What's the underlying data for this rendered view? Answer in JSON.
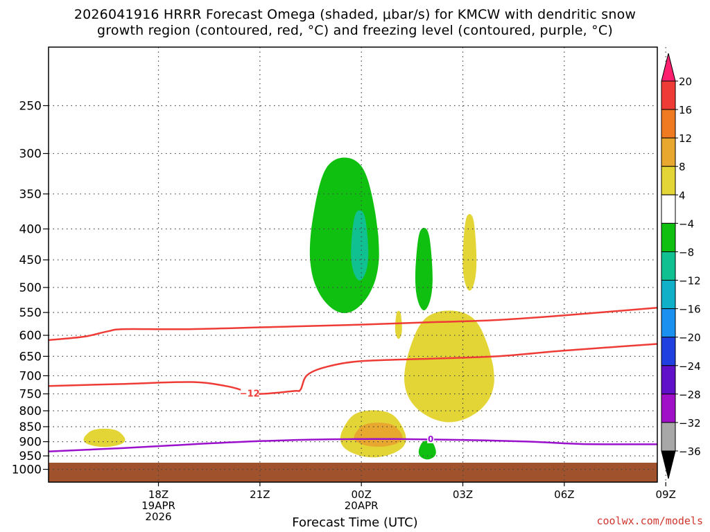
{
  "header": {
    "title_line1": "2026041916 HRRR Forecast Omega (shaded, μbar/s) for KMCW with dendritic snow",
    "title_line2": "growth region (contoured, red, °C) and freezing level (contoured, purple, °C)"
  },
  "footer": {
    "credit": "coolwx.com/models",
    "xlabel": "Forecast Time (UTC)"
  },
  "chart_data": {
    "type": "contour",
    "title": "2026041916 HRRR Forecast Omega (shaded, μbar/s) for KMCW with dendritic snow growth region (contoured, red, °C) and freezing level (contoured, purple, °C)",
    "xlabel": "Forecast Time (UTC)",
    "ylabel": "",
    "y_scale": "log pressure (hPa), inverted",
    "xlim_hours_from_18Z": [
      -3.25,
      14.75
    ],
    "ylim_hPa": [
      1050,
      200
    ],
    "x_ticks": [
      {
        "hour": 0,
        "label": "18Z",
        "sub1": "19APR",
        "sub2": "2026"
      },
      {
        "hour": 3,
        "label": "21Z",
        "sub1": "",
        "sub2": ""
      },
      {
        "hour": 6,
        "label": "00Z",
        "sub1": "20APR",
        "sub2": ""
      },
      {
        "hour": 9,
        "label": "03Z",
        "sub1": "",
        "sub2": ""
      },
      {
        "hour": 12,
        "label": "06Z",
        "sub1": "",
        "sub2": ""
      },
      {
        "hour": 15,
        "label": "09Z",
        "sub1": "",
        "sub2": ""
      }
    ],
    "y_ticks": [
      "250",
      "300",
      "350",
      "400",
      "450",
      "500",
      "550",
      "600",
      "650",
      "700",
      "750",
      "800",
      "850",
      "900",
      "950",
      "1000"
    ],
    "grid": true,
    "colorbar": {
      "labels": [
        "20",
        "16",
        "12",
        "8",
        "4",
        "−4",
        "−8",
        "−12",
        "−16",
        "−20",
        "−24",
        "−28",
        "−32",
        "−36"
      ],
      "colors": [
        "#ff1f6f",
        "#ef3b36",
        "#f07a22",
        "#e8a830",
        "#e3d535",
        "#ffffff",
        "#10c010",
        "#10c090",
        "#10b0c8",
        "#1a90f0",
        "#2040e0",
        "#6010c8",
        "#a010c8",
        "#a8a8a8",
        "#000000"
      ]
    },
    "ground_color": "#a0522d",
    "omega_shading": [
      {
        "level": -8,
        "color": "#10c010",
        "region": "upper ascent core",
        "hours": [
          4.5,
          6.5
        ],
        "hPa": [
          300,
          560
        ]
      },
      {
        "level": -12,
        "color": "#10c090",
        "region": "ascent maximum",
        "hours": [
          5.7,
          6.2
        ],
        "hPa": [
          370,
          490
        ]
      },
      {
        "level": -8,
        "color": "#10c010",
        "region": "mid-level ascent",
        "hours": [
          7.6,
          8.1
        ],
        "hPa": [
          395,
          550
        ]
      },
      {
        "level": -8,
        "color": "#10c010",
        "region": "low-level ascent",
        "hours": [
          7.7,
          8.2
        ],
        "hPa": [
          895,
          965
        ]
      },
      {
        "level": 4,
        "color": "#e3d535",
        "region": "descent band",
        "hours": [
          7.3,
          9.9
        ],
        "hPa": [
          540,
          845
        ]
      },
      {
        "level": 4,
        "color": "#e3d535",
        "region": "low-level descent",
        "hours": [
          5.4,
          7.3
        ],
        "hPa": [
          795,
          960
        ]
      },
      {
        "level": 8,
        "color": "#e8a830",
        "region": "low-level descent core",
        "hours": [
          5.8,
          7.2
        ],
        "hPa": [
          835,
          920
        ]
      },
      {
        "level": 4,
        "color": "#e3d535",
        "region": "upper descent",
        "hours": [
          9.0,
          9.4
        ],
        "hPa": [
          375,
          510
        ]
      },
      {
        "level": 4,
        "color": "#e3d535",
        "region": "afternoon descent",
        "hours": [
          -2.2,
          -1.0
        ],
        "hPa": [
          855,
          920
        ]
      },
      {
        "level": 4,
        "color": "#e3d535",
        "region": "small descent cell",
        "hours": [
          7.0,
          7.2
        ],
        "hPa": [
          545,
          610
        ]
      }
    ],
    "dgz_contours": [
      {
        "name": "-12",
        "label": "−12",
        "color": "#ee3b36",
        "points": [
          [
            -3.25,
            728
          ],
          [
            -1.0,
            722
          ],
          [
            1.0,
            717
          ],
          [
            2.0,
            728
          ],
          [
            2.5,
            740
          ],
          [
            3.0,
            750
          ],
          [
            4.0,
            742
          ],
          [
            4.2,
            738
          ],
          [
            4.4,
            698
          ],
          [
            5.0,
            676
          ],
          [
            6.0,
            662
          ],
          [
            8.0,
            656
          ],
          [
            10.0,
            650
          ],
          [
            12.0,
            636
          ],
          [
            14.75,
            620
          ]
        ]
      },
      {
        "name": "-18",
        "label": "",
        "color": "#ee3b36",
        "points": [
          [
            -3.25,
            611
          ],
          [
            -2.2,
            603
          ],
          [
            -1.5,
            591
          ],
          [
            -1.0,
            586
          ],
          [
            1.0,
            586
          ],
          [
            4.0,
            580
          ],
          [
            6.0,
            576
          ],
          [
            8.0,
            571
          ],
          [
            10.0,
            566
          ],
          [
            12.0,
            556
          ],
          [
            14.75,
            540
          ]
        ]
      }
    ],
    "freezing_level": {
      "label": "0",
      "color": "#9a10cc",
      "points": [
        [
          -3.25,
          934
        ],
        [
          -1.0,
          922
        ],
        [
          1.0,
          909
        ],
        [
          3.0,
          898
        ],
        [
          5.0,
          892
        ],
        [
          7.0,
          891
        ],
        [
          9.0,
          894
        ],
        [
          11.0,
          900
        ],
        [
          12.5,
          908
        ],
        [
          14.75,
          909
        ]
      ]
    }
  }
}
